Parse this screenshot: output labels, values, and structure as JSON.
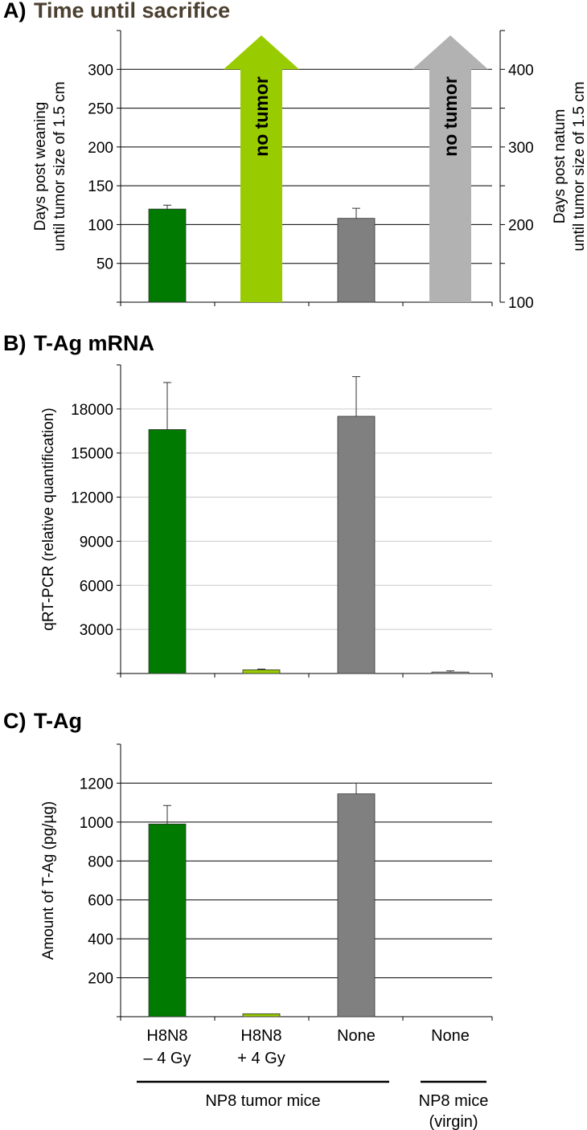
{
  "colors": {
    "dark_green": "#007a00",
    "light_green": "#99cc00",
    "dark_gray": "#808080",
    "light_gray": "#b2b2b2",
    "title_brown": "#4b3f2f",
    "grid": "#000000",
    "grid_light": "#cccccc"
  },
  "categories": [
    [
      "H8N8",
      "– 4 Gy"
    ],
    [
      "H8N8",
      "+ 4 Gy"
    ],
    [
      "None"
    ],
    [
      "None"
    ]
  ],
  "groups": [
    {
      "label": [
        "NP8 tumor mice"
      ],
      "categories": [
        0,
        1,
        2
      ]
    },
    {
      "label": [
        "NP8 mice",
        "(virgin)"
      ],
      "categories": [
        3
      ]
    }
  ],
  "chart_data": [
    {
      "panel_label": "A)",
      "title": "Time until sacrifice",
      "type": "bar",
      "ylabel": [
        "Days post weaning",
        "until tumor size of 1.5 cm"
      ],
      "y2label": [
        "Days post natum",
        "until tumor size of 1.5 cm"
      ],
      "ylim": [
        0,
        350
      ],
      "yticks": [
        50,
        100,
        150,
        200,
        250,
        300
      ],
      "y2ticks": [
        100,
        200,
        300,
        400
      ],
      "y2_offset": 100,
      "grid": true,
      "values": [
        120,
        null,
        108,
        null
      ],
      "errors": [
        5,
        null,
        13,
        null
      ],
      "arrows": [
        {
          "category": 1,
          "label": "no tumor",
          "color": "#99cc00"
        },
        {
          "category": 3,
          "label": "no tumor",
          "color": "#b2b2b2"
        }
      ],
      "bar_colors": [
        "#007a00",
        "#99cc00",
        "#808080",
        "#b2b2b2"
      ]
    },
    {
      "panel_label": "B)",
      "title": "T-Ag mRNA",
      "type": "bar",
      "ylabel": [
        "qRT-PCR (relative quantification)"
      ],
      "ylim": [
        0,
        21000
      ],
      "yticks": [
        3000,
        6000,
        9000,
        12000,
        15000,
        18000
      ],
      "grid": true,
      "values": [
        16600,
        250,
        17500,
        100
      ],
      "errors": [
        3200,
        50,
        2700,
        80
      ],
      "bar_colors": [
        "#007a00",
        "#99cc00",
        "#808080",
        "#b2b2b2"
      ]
    },
    {
      "panel_label": "C)",
      "title": "T-Ag",
      "type": "bar",
      "ylabel": [
        "Amount of T-Ag (pg/µg)"
      ],
      "ylim": [
        0,
        1400
      ],
      "yticks": [
        200,
        400,
        600,
        800,
        1000,
        1200
      ],
      "grid": true,
      "values": [
        990,
        15,
        1145,
        0
      ],
      "errors": [
        95,
        0,
        55,
        0
      ],
      "bar_colors": [
        "#007a00",
        "#99cc00",
        "#808080",
        "#b2b2b2"
      ]
    }
  ]
}
